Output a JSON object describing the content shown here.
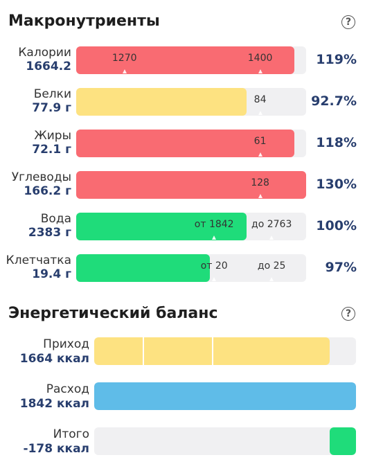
{
  "macros": {
    "title": "Макронутриенты",
    "help": "?",
    "rows": [
      {
        "name": "Калории",
        "value": "1664.2",
        "percent": "119%",
        "fill": 0.948,
        "color": "#f96b72",
        "markers": [
          {
            "text": "1270",
            "pos": 0.21
          },
          {
            "text": "1400",
            "pos": 0.8
          }
        ]
      },
      {
        "name": "Белки",
        "value": "77.9 г",
        "percent": "92.7%",
        "fill": 0.74,
        "color": "#fde281",
        "markers": [
          {
            "text": "84",
            "pos": 0.8
          }
        ]
      },
      {
        "name": "Жиры",
        "value": "72.1 г",
        "percent": "118%",
        "fill": 0.948,
        "color": "#f96b72",
        "markers": [
          {
            "text": "61",
            "pos": 0.8
          }
        ]
      },
      {
        "name": "Углеводы",
        "value": "166.2 г",
        "percent": "130%",
        "fill": 1.0,
        "color": "#f96b72",
        "markers": [
          {
            "text": "128",
            "pos": 0.8
          }
        ]
      },
      {
        "name": "Вода",
        "value": "2383 г",
        "percent": "100%",
        "fill": 0.74,
        "color": "#1fdc7a",
        "markers": [
          {
            "text": "от 1842",
            "pos": 0.6
          },
          {
            "text": "до 2763",
            "pos": 0.85
          }
        ]
      },
      {
        "name": "Клетчатка",
        "value": "19.4 г",
        "percent": "97%",
        "fill": 0.58,
        "color": "#1fdc7a",
        "markers": [
          {
            "text": "от 20",
            "pos": 0.6
          },
          {
            "text": "до 25",
            "pos": 0.85
          }
        ]
      }
    ]
  },
  "energy": {
    "title": "Энергетический баланс",
    "help": "?",
    "rows": [
      {
        "name": "Приход",
        "value": "1664 ккал",
        "fill": 0.9,
        "color": "#fde281",
        "dividers": [
          0.185,
          0.45
        ]
      },
      {
        "name": "Расход",
        "value": "1842 ккал",
        "fill": 1.0,
        "color": "#5fbce8",
        "dividers": []
      },
      {
        "name": "Итого",
        "value": "-178 ккал",
        "fill": 0.1,
        "color": "#1fdc7a",
        "align": "right",
        "dividers": []
      }
    ]
  }
}
